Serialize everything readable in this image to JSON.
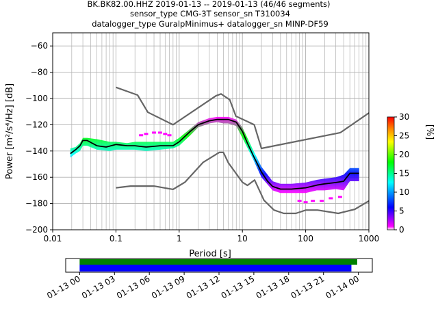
{
  "title": {
    "line1": "BK.BK82.00.HHZ   2019-01-13 -- 2019-01-13  (46/46 segments)",
    "line2": "sensor_type CMG-3T sensor_sn T310034",
    "line3": "datalogger_type GuralpMinimus+ datalogger_sn MINP-DF59"
  },
  "chart_data": [
    {
      "type": "heatmap",
      "name": "ppsd",
      "xlabel": "Period [s]",
      "ylabel": "Power [m²/s⁴/Hz] [dB]",
      "xscale": "log",
      "xlim": [
        0.01,
        1000
      ],
      "ylim": [
        -200,
        -50
      ],
      "xtick_labels": [
        "0.01",
        "0.1",
        "1",
        "10",
        "100",
        "1000"
      ],
      "ytick_values": [
        -200,
        -180,
        -160,
        -140,
        -120,
        -100,
        -80,
        -60
      ],
      "ytick_labels": [
        "−200",
        "−180",
        "−160",
        "−140",
        "−120",
        "−100",
        "−80",
        "−60"
      ],
      "grid": true,
      "colorbar": {
        "label": "[%]",
        "range": [
          0,
          30
        ],
        "ticks": [
          0,
          5,
          10,
          15,
          20,
          25,
          30
        ],
        "colors": [
          "#ffffff",
          "#ff00ff",
          "#0000ff",
          "#00ffff",
          "#00ff00",
          "#ffff00",
          "#ff8000",
          "#ff0000"
        ]
      },
      "density_band": {
        "period": [
          0.019,
          0.023,
          0.027,
          0.03,
          0.035,
          0.05,
          0.08,
          0.1,
          0.15,
          0.2,
          0.3,
          0.5,
          0.8,
          1.0,
          1.5,
          2,
          3,
          4,
          5,
          6,
          8,
          10,
          15,
          20,
          30,
          40,
          60,
          100,
          150,
          200,
          300,
          400,
          500,
          600,
          700
        ],
        "lower": [
          -145,
          -142,
          -140,
          -136,
          -136,
          -139,
          -140,
          -139,
          -139,
          -139,
          -140,
          -139,
          -138,
          -136,
          -128,
          -122,
          -119,
          -118,
          -119,
          -119,
          -121,
          -130,
          -147,
          -160,
          -170,
          -172,
          -172,
          -172,
          -170,
          -170,
          -169,
          -170,
          -163,
          -163,
          -163
        ],
        "upper": [
          -138,
          -137,
          -134,
          -130,
          -130,
          -131,
          -133,
          -133,
          -134,
          -133,
          -133,
          -133,
          -133,
          -130,
          -123,
          -118,
          -115,
          -114,
          -114,
          -114,
          -116,
          -122,
          -140,
          -152,
          -163,
          -165,
          -165,
          -164,
          -162,
          -161,
          -160,
          -158,
          -153,
          -153,
          -153
        ]
      },
      "series": [
        {
          "name": "mean",
          "color": "#000000",
          "x": [
            0.019,
            0.023,
            0.027,
            0.03,
            0.035,
            0.05,
            0.07,
            0.1,
            0.15,
            0.2,
            0.3,
            0.5,
            0.8,
            1.0,
            1.5,
            2,
            3,
            4,
            5,
            6,
            8,
            10,
            12,
            15,
            20,
            25,
            30,
            40,
            60,
            100,
            150,
            200,
            300,
            400,
            500,
            600,
            700
          ],
          "y": [
            -142,
            -139,
            -136,
            -132,
            -132,
            -136,
            -137,
            -135,
            -136,
            -136,
            -137,
            -136,
            -136,
            -133,
            -125,
            -120,
            -117,
            -116,
            -116,
            -116,
            -118,
            -125,
            -134,
            -144,
            -156,
            -163,
            -167,
            -169,
            -169,
            -168,
            -166,
            -165,
            -164,
            -163,
            -157,
            -157,
            -157
          ]
        },
        {
          "name": "high-noise-model",
          "color": "#666666",
          "x": [
            0.1,
            0.22,
            0.32,
            0.8,
            3.8,
            4.6,
            6.3,
            7.9,
            15.4,
            20,
            354.8,
            1000
          ],
          "y": [
            -91.5,
            -97.4,
            -110.5,
            -120,
            -98,
            -96.5,
            -101,
            -113.5,
            -120,
            -138,
            -126,
            -111
          ]
        },
        {
          "name": "low-noise-model",
          "color": "#666666",
          "x": [
            0.1,
            0.17,
            0.4,
            0.8,
            1.24,
            2.4,
            4.3,
            5,
            6,
            10,
            12,
            15.6,
            21.9,
            31.6,
            45,
            70,
            101,
            154,
            328,
            600,
            1000
          ],
          "y": [
            -168,
            -166.7,
            -166.7,
            -169.2,
            -163.7,
            -148.6,
            -141.1,
            -141.1,
            -149,
            -163.8,
            -166.2,
            -162.1,
            -177.5,
            -185,
            -187.5,
            -187.5,
            -185,
            -185,
            -187.5,
            -184.4,
            -178
          ]
        }
      ],
      "outliers": {
        "period": [
          0.25,
          0.3,
          0.4,
          0.5,
          0.6,
          0.7,
          80,
          100,
          130,
          180,
          250,
          350
        ],
        "power": [
          -128,
          -127,
          -126,
          -126,
          -127,
          -128,
          -178,
          -179,
          -178,
          -178,
          -176,
          -175
        ]
      }
    },
    {
      "type": "table",
      "name": "data-availability",
      "tick_labels": [
        "01-13 00",
        "01-13 03",
        "01-13 06",
        "01-13 09",
        "01-13 12",
        "01-13 15",
        "01-13 18",
        "01-13 21",
        "01-14 00"
      ],
      "tick_hours": [
        0,
        3,
        6,
        9,
        12,
        15,
        18,
        21,
        24
      ],
      "xlim_hours": [
        -1.2,
        25.2
      ],
      "green_bar_hours": [
        0,
        23.9
      ],
      "blue_bar_hours": [
        0,
        23.4
      ],
      "colors": {
        "green": "#008000",
        "blue": "#0000ff"
      }
    }
  ]
}
